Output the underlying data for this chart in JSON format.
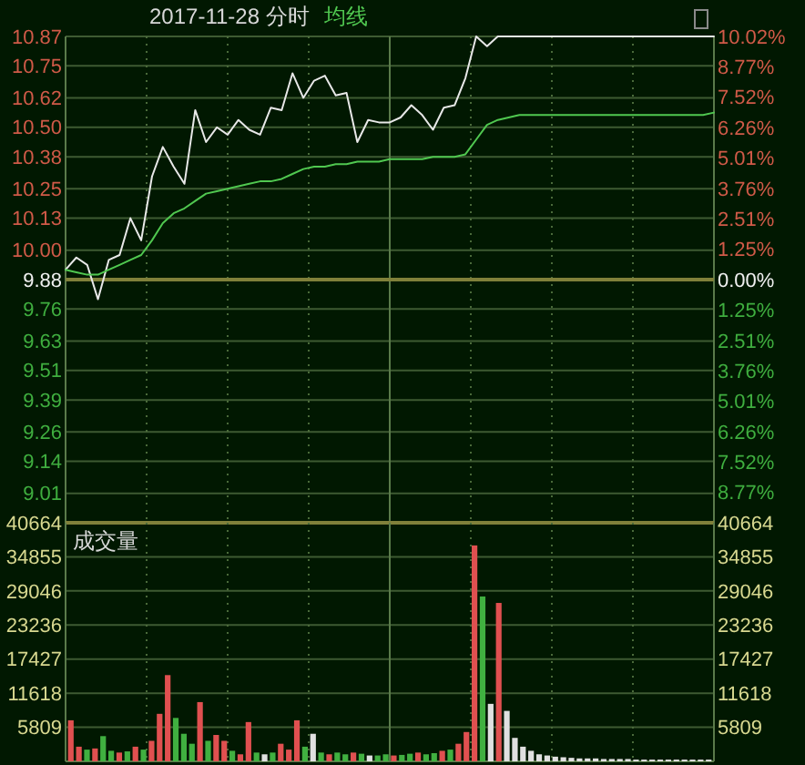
{
  "chart_data": [
    {
      "type": "line",
      "title": "2017-11-28 分时",
      "grid": "y",
      "ref_lines": [
        {
          "axis": "y",
          "value": 9.88,
          "color": "#80803a"
        }
      ],
      "tick_labels": "y",
      "ylim": [
        8.89,
        10.87
      ],
      "yticks": [
        10.87,
        10.75,
        10.62,
        {
          "value": 10.5,
          "label": "10.50"
        },
        10.38,
        10.25,
        10.13,
        {
          "value": 10.0,
          "label": "10.00"
        },
        9.88,
        9.76,
        9.63,
        9.51,
        9.39,
        9.26,
        9.14,
        9.01
      ],
      "y2lim": [
        -10.02,
        10.02
      ],
      "y2ticks": [
        {
          "value": 10.02,
          "label": "10.02%"
        },
        {
          "value": 8.77,
          "label": "8.77%"
        },
        {
          "value": 7.52,
          "label": "7.52%"
        },
        {
          "value": 6.26,
          "label": "6.26%"
        },
        {
          "value": 5.01,
          "label": "5.01%"
        },
        {
          "value": 3.76,
          "label": "3.76%"
        },
        {
          "value": 2.51,
          "label": "2.51%"
        },
        {
          "value": 1.25,
          "label": "1.25%"
        },
        {
          "value": 0,
          "label": "0.00%"
        },
        {
          "value": -1.25,
          "label": "1.25%"
        },
        {
          "value": -2.51,
          "label": "2.51%"
        },
        {
          "value": -3.76,
          "label": "3.76%"
        },
        {
          "value": -5.01,
          "label": "5.01%"
        },
        {
          "value": -6.26,
          "label": "6.26%"
        },
        {
          "value": -7.52,
          "label": "7.52%"
        },
        {
          "value": -8.77,
          "label": "8.77%"
        }
      ],
      "categories": [
        null,
        null,
        null,
        null,
        null,
        null,
        null,
        null,
        null,
        null,
        null,
        null,
        null,
        null,
        null,
        null,
        null,
        null,
        null,
        null,
        null,
        null,
        null,
        null,
        null,
        null,
        null,
        null,
        null,
        null,
        null,
        null,
        null,
        null,
        null,
        null,
        null,
        null,
        null,
        null,
        null,
        null,
        null,
        null,
        null,
        null,
        null,
        null,
        null,
        null,
        null,
        null,
        null,
        null,
        null,
        null,
        null,
        null,
        null,
        null,
        null
      ],
      "series": [
        {
          "color": "#e8e8e8",
          "values": [
            9.92,
            9.97,
            9.94,
            9.8,
            9.96,
            9.98,
            10.13,
            10.04,
            10.3,
            10.42,
            10.34,
            10.27,
            10.57,
            10.44,
            10.5,
            10.47,
            10.53,
            10.49,
            10.47,
            10.58,
            10.57,
            10.72,
            10.62,
            10.69,
            10.71,
            10.63,
            10.64,
            10.44,
            10.53,
            10.52,
            10.52,
            10.54,
            10.59,
            10.55,
            10.49,
            10.58,
            10.59,
            10.7,
            10.87,
            10.83,
            10.87,
            10.87,
            10.87,
            10.87,
            10.87,
            10.87,
            10.87,
            10.87,
            10.87,
            10.87,
            10.87,
            10.87,
            10.87,
            10.87,
            10.87,
            10.87,
            10.87,
            10.87,
            10.87,
            10.87,
            10.87
          ]
        },
        {
          "name": "均线",
          "color": "#50c850",
          "values": [
            9.92,
            9.91,
            9.9,
            9.9,
            9.92,
            9.94,
            9.96,
            9.98,
            10.04,
            10.11,
            10.15,
            10.17,
            10.2,
            10.23,
            10.24,
            10.25,
            10.26,
            10.27,
            10.28,
            10.28,
            10.29,
            10.31,
            10.33,
            10.34,
            10.34,
            10.35,
            10.35,
            10.36,
            10.36,
            10.36,
            10.37,
            10.37,
            10.37,
            10.37,
            10.38,
            10.38,
            10.38,
            10.39,
            10.45,
            10.51,
            10.53,
            10.54,
            10.55,
            10.55,
            10.55,
            10.55,
            10.55,
            10.55,
            10.55,
            10.55,
            10.55,
            10.55,
            10.55,
            10.55,
            10.55,
            10.55,
            10.55,
            10.55,
            10.55,
            10.55,
            10.56
          ]
        }
      ]
    },
    {
      "type": "bar",
      "title": "成交量",
      "grid": "y",
      "tick_labels": "y",
      "ylim": [
        0,
        40664
      ],
      "yticks": [
        5809,
        11618,
        17427,
        23236,
        29046,
        34855,
        40664
      ],
      "y2lim": [
        0,
        40664
      ],
      "y2ticks": [
        5809,
        11618,
        17427,
        23236,
        29046,
        34855,
        40664
      ],
      "categories": [
        null,
        null,
        null,
        null,
        null,
        null,
        null,
        null,
        null,
        null,
        null,
        null,
        null,
        null,
        null,
        null,
        null,
        null,
        null,
        null,
        null,
        null,
        null,
        null,
        null,
        null,
        null,
        null,
        null,
        null,
        null,
        null,
        null,
        null,
        null,
        null,
        null,
        null,
        null,
        null,
        null,
        null,
        null,
        null,
        null,
        null,
        null,
        null,
        null,
        null,
        null,
        null,
        null,
        null,
        null,
        null,
        null,
        null,
        null,
        null,
        null,
        null,
        null,
        null,
        null,
        null,
        null,
        null,
        null,
        null,
        null,
        null,
        null,
        null,
        null,
        null,
        null,
        null,
        null,
        null
      ],
      "values": [
        7000,
        2500,
        2000,
        2200,
        4300,
        1800,
        1500,
        1700,
        2500,
        2000,
        3500,
        8100,
        14700,
        7400,
        4700,
        3000,
        10100,
        3500,
        4500,
        3500,
        1800,
        1200,
        6700,
        1500,
        1200,
        1500,
        3000,
        2000,
        7000,
        2500,
        4700,
        1500,
        1200,
        1500,
        1200,
        1500,
        1300,
        1000,
        1000,
        1200,
        1000,
        1100,
        1300,
        1500,
        1200,
        1400,
        1800,
        2000,
        3000,
        5000,
        36800,
        28100,
        9800,
        27000,
        8600,
        4000,
        2500,
        1800,
        1200,
        1000,
        800,
        700,
        600,
        500,
        500,
        500,
        400,
        400,
        400,
        400,
        300,
        300,
        300,
        300,
        300,
        300,
        300,
        300,
        300,
        300
      ],
      "colors": [
        "#e05050",
        "#e05050",
        "#40b040",
        "#e05050",
        "#40b040",
        "#40b040",
        "#e05050",
        "#40b040",
        "#e05050",
        "#40b040",
        "#e05050",
        "#e05050",
        "#e05050",
        "#40b040",
        "#40b040",
        "#40b040",
        "#e05050",
        "#40b040",
        "#e05050",
        "#e05050",
        "#40b040",
        "#e05050",
        "#e05050",
        "#40b040",
        "#e0e0e0",
        "#40b040",
        "#e05050",
        "#e05050",
        "#e05050",
        "#40b040",
        "#e0e0e0",
        "#40b040",
        "#e05050",
        "#40b040",
        "#40b040",
        "#e05050",
        "#40b040",
        "#e0e0e0",
        "#40b040",
        "#40b040",
        "#e05050",
        "#40b040",
        "#40b040",
        "#e05050",
        "#40b040",
        "#40b040",
        "#e05050",
        "#40b040",
        "#e05050",
        "#e05050",
        "#e05050",
        "#40b040",
        "#e0e0e0",
        "#e05050",
        "#e0e0e0",
        "#e0e0e0",
        "#e0e0e0",
        "#e0e0e0",
        "#e0e0e0",
        "#e0e0e0",
        "#e0e0e0",
        "#e0e0e0",
        "#e0e0e0",
        "#e0e0e0",
        "#e0e0e0",
        "#e0e0e0",
        "#e0e0e0",
        "#e0e0e0",
        "#e0e0e0",
        "#e0e0e0",
        "#e0e0e0",
        "#e0e0e0",
        "#e0e0e0",
        "#e0e0e0",
        "#e0e0e0",
        "#e0e0e0",
        "#e0e0e0",
        "#e0e0e0",
        "#e0e0e0",
        "#e0e0e0"
      ]
    }
  ]
}
